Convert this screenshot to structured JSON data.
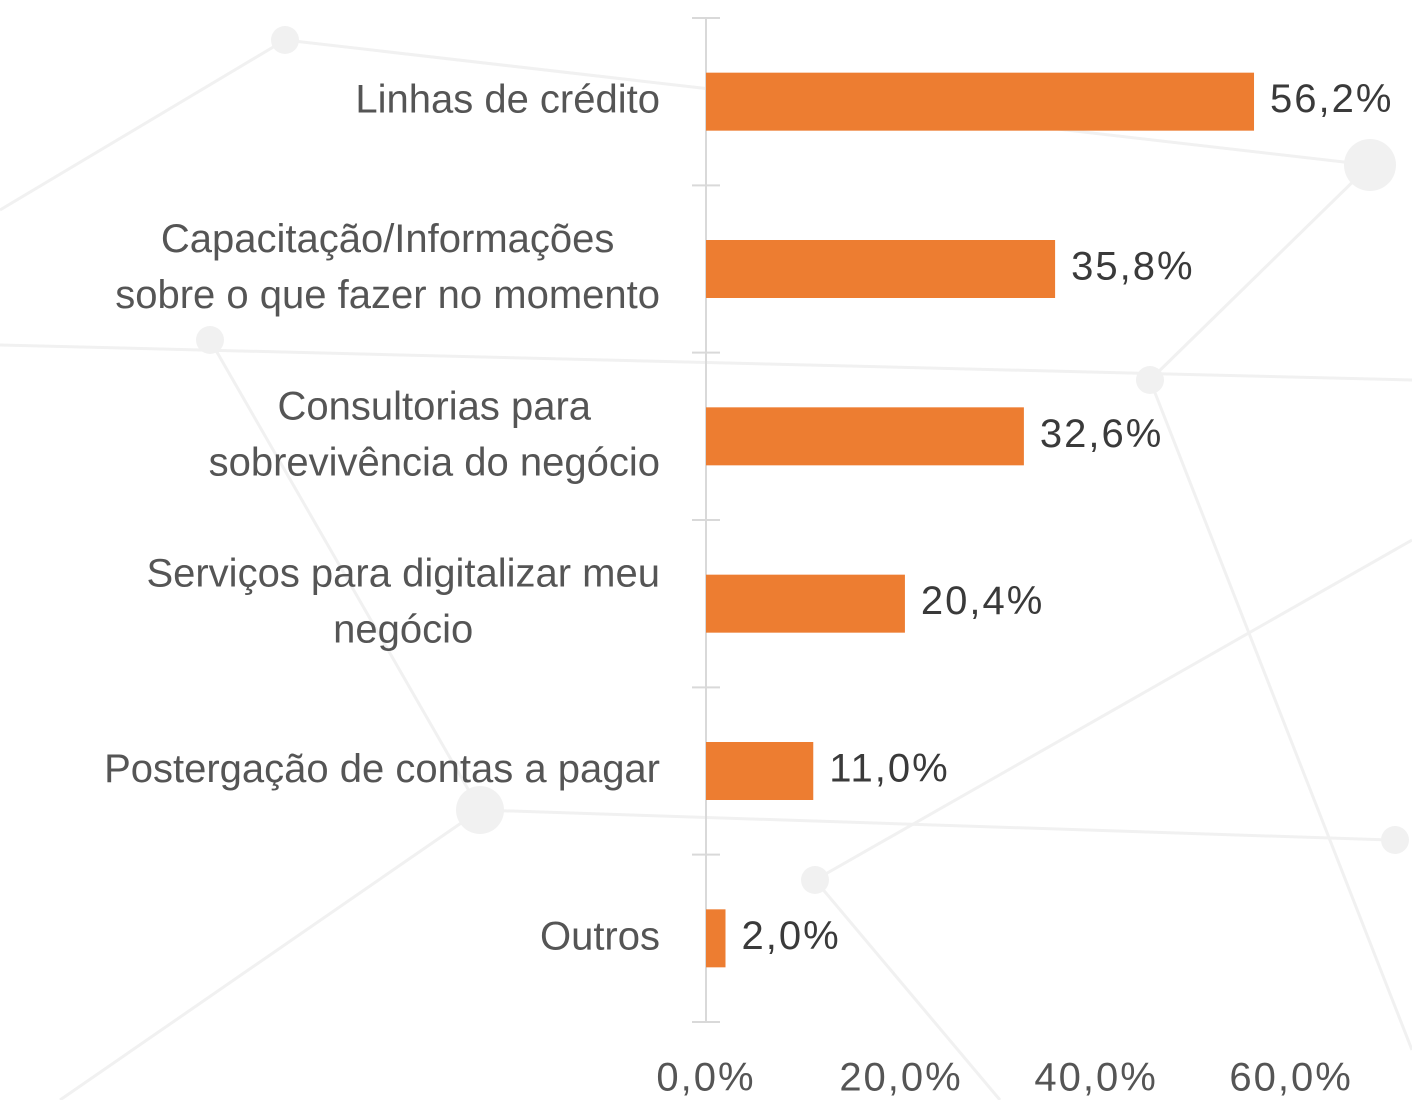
{
  "chart_data": {
    "type": "barh",
    "categories": [
      "Linhas de crédito",
      "Capacitação/Informações\nsobre o que fazer no momento",
      "Consultorias para\nsobrevivência do negócio",
      "Serviços para digitalizar meu\nnegócio",
      "Postergação de contas a pagar",
      "Outros"
    ],
    "values": [
      56.2,
      35.8,
      32.6,
      20.4,
      11.0,
      2.0
    ],
    "value_labels": [
      "56,2%",
      "35,8%",
      "32,6%",
      "20,4%",
      "11,0%",
      "2,0%"
    ],
    "color": "#ed7d31",
    "xlim": [
      0,
      72.4
    ],
    "xticks": [
      {
        "value": 0,
        "label": "0,0%"
      },
      {
        "value": 20,
        "label": "20,0%"
      },
      {
        "value": 40,
        "label": "40,0%"
      },
      {
        "value": 60,
        "label": "60,0%"
      }
    ],
    "grid": false
  }
}
